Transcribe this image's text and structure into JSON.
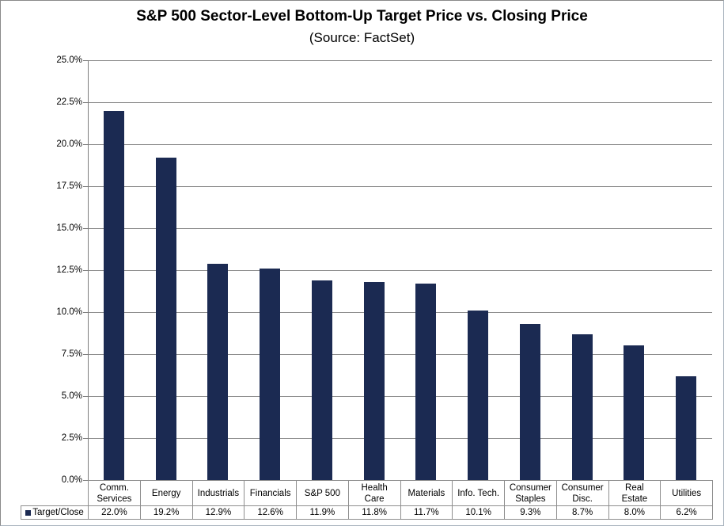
{
  "window": {
    "background": "#ffffff",
    "border_color": "#8a8a8a"
  },
  "chart_data": {
    "type": "bar",
    "title": "S&P 500 Sector-Level Bottom-Up Target Price vs. Closing Price",
    "subtitle": "(Source: FactSet)",
    "categories": [
      "Comm. Services",
      "Energy",
      "Industrials",
      "Financials",
      "S&P 500",
      "Health Care",
      "Materials",
      "Info. Tech.",
      "Consumer Staples",
      "Consumer Disc.",
      "Real Estate",
      "Utilities"
    ],
    "category_label_lines": [
      [
        "Comm.",
        "Services"
      ],
      [
        "Energy"
      ],
      [
        "Industrials"
      ],
      [
        "Financials"
      ],
      [
        "S&P 500"
      ],
      [
        "Health",
        "Care"
      ],
      [
        "Materials"
      ],
      [
        "Info. Tech."
      ],
      [
        "Consumer",
        "Staples"
      ],
      [
        "Consumer",
        "Disc."
      ],
      [
        "Real",
        "Estate"
      ],
      [
        "Utilities"
      ]
    ],
    "series": [
      {
        "name": "Target/Close",
        "values": [
          22.0,
          19.2,
          12.9,
          12.6,
          11.9,
          11.8,
          11.7,
          10.1,
          9.3,
          8.7,
          8.0,
          6.2
        ],
        "value_labels": [
          "22.0%",
          "19.2%",
          "12.9%",
          "12.6%",
          "11.9%",
          "11.8%",
          "11.7%",
          "10.1%",
          "9.3%",
          "8.7%",
          "8.0%",
          "6.2%"
        ],
        "color": "#1b2a52"
      }
    ],
    "xlabel": "",
    "ylabel": "",
    "ylim": [
      0,
      25
    ],
    "ytick_step": 2.5,
    "ytick_labels": [
      "25.0%",
      "22.5%",
      "20.0%",
      "17.5%",
      "15.0%",
      "12.5%",
      "10.0%",
      "7.5%",
      "5.0%",
      "2.5%",
      "0.0%"
    ],
    "grid": true,
    "gridline_color": "#8e8e8e",
    "axis_color": "#7f7f7f",
    "legend_position": "bottom-data-table"
  }
}
